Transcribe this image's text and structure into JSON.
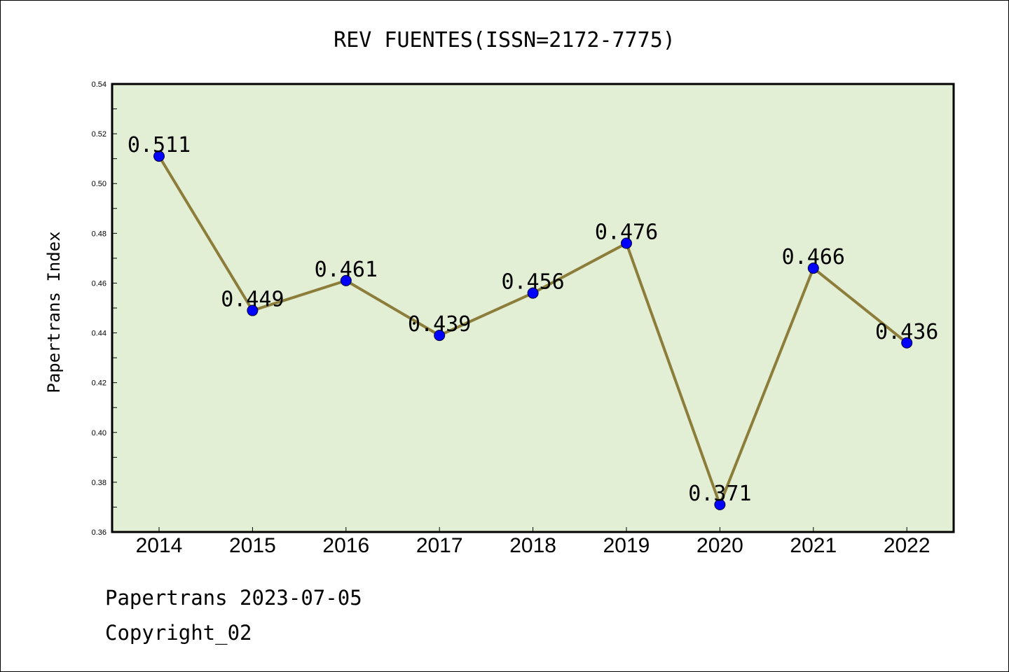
{
  "chart_data": {
    "type": "line",
    "title": "REV FUENTES(ISSN=2172-7775)",
    "xlabel": "",
    "ylabel": "Papertrans Index",
    "x": [
      "2014",
      "2015",
      "2016",
      "2017",
      "2018",
      "2019",
      "2020",
      "2021",
      "2022"
    ],
    "values": [
      0.511,
      0.449,
      0.461,
      0.439,
      0.456,
      0.476,
      0.371,
      0.466,
      0.436
    ],
    "data_labels": [
      "0.511",
      "0.449",
      "0.461",
      "0.439",
      "0.456",
      "0.476",
      "0.371",
      "0.466",
      "0.436"
    ],
    "ylim": [
      0.36,
      0.54
    ],
    "yticks": [
      "0.36",
      "0.38",
      "0.40",
      "0.42",
      "0.44",
      "0.46",
      "0.48",
      "0.50",
      "0.52",
      "0.54"
    ],
    "grid": false,
    "legend": "none",
    "colors": {
      "plot_background": "#e2efd4",
      "line": "#8c7e3a",
      "marker": "#0000ff"
    }
  },
  "footer": {
    "line1": "Papertrans 2023-07-05",
    "line2": "Copyright_02"
  }
}
